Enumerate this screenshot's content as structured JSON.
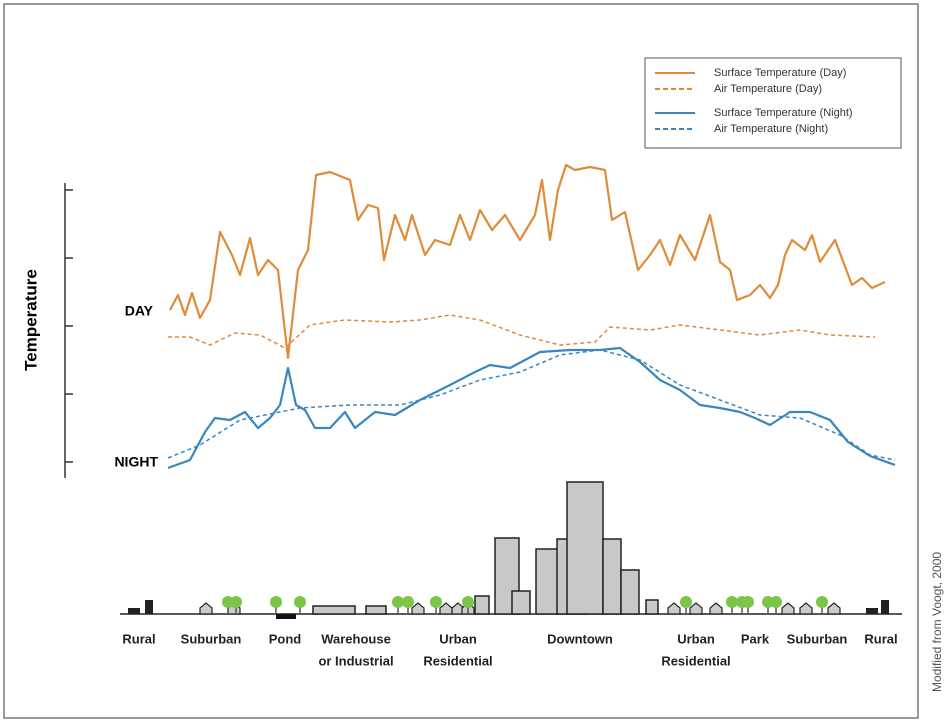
{
  "axis": {
    "label": "Temperature",
    "day": "DAY",
    "night": "NIGHT"
  },
  "legend": [
    "Surface Temperature (Day)",
    "Air Temperature  (Day)",
    "Surface Temperature (Night)",
    "Air Temperature (Night)"
  ],
  "zones": [
    [
      "Rural"
    ],
    [
      "Suburban"
    ],
    [
      "Pond"
    ],
    [
      "Warehouse",
      "or Industrial"
    ],
    [
      "Urban",
      "Residential"
    ],
    [
      "Downtown"
    ],
    [
      "Urban",
      "Residential"
    ],
    [
      "Park"
    ],
    [
      "Suburban"
    ],
    [
      "Rural"
    ]
  ],
  "credit": "Modified from Voogt, 2000"
}
